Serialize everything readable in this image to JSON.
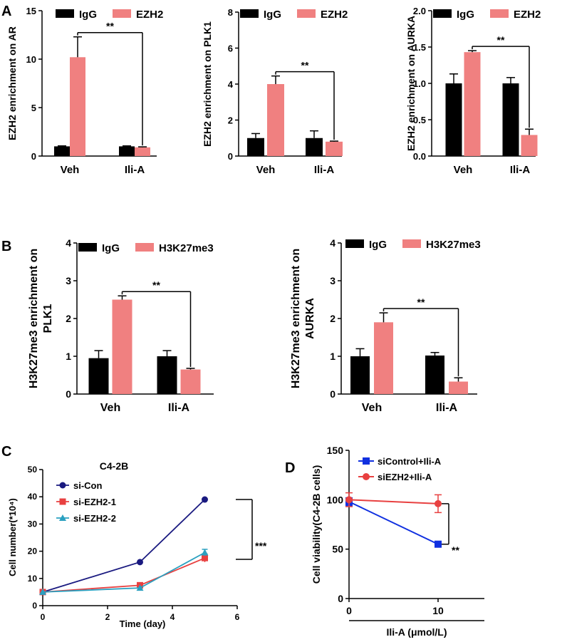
{
  "panels": {
    "A": "A",
    "B": "B",
    "C": "C",
    "D": "D"
  },
  "chart_data": [
    {
      "id": "A1",
      "type": "bar",
      "categories": [
        "Veh",
        "Ili-A"
      ],
      "series": [
        {
          "name": "IgG",
          "values": [
            1.0,
            1.0
          ],
          "errors": [
            0.05,
            0.05
          ]
        },
        {
          "name": "EZH2",
          "values": [
            10.2,
            0.9
          ],
          "errors": [
            2.1,
            0.05
          ]
        }
      ],
      "ylabel": "EZH2 enrichment on AR",
      "ylim": [
        0,
        15
      ],
      "yticks": [
        0,
        5,
        10,
        15
      ],
      "significance": "**",
      "colors": {
        "IgG": "#000000",
        "EZH2": "#f08080"
      }
    },
    {
      "id": "A2",
      "type": "bar",
      "categories": [
        "Veh",
        "Ili-A"
      ],
      "series": [
        {
          "name": "IgG",
          "values": [
            1.0,
            1.0
          ],
          "errors": [
            0.25,
            0.4
          ]
        },
        {
          "name": "EZH2",
          "values": [
            4.0,
            0.8
          ],
          "errors": [
            0.45,
            0.03
          ]
        }
      ],
      "ylabel": "EZH2 enrichment on PLK1",
      "ylim": [
        0,
        8
      ],
      "yticks": [
        0,
        2,
        4,
        6,
        8
      ],
      "significance": "**",
      "colors": {
        "IgG": "#000000",
        "EZH2": "#f08080"
      }
    },
    {
      "id": "A3",
      "type": "bar",
      "categories": [
        "Veh",
        "Ili-A"
      ],
      "series": [
        {
          "name": "IgG",
          "values": [
            1.0,
            1.0
          ],
          "errors": [
            0.13,
            0.08
          ]
        },
        {
          "name": "EZH2",
          "values": [
            1.43,
            0.29
          ],
          "errors": [
            0.02,
            0.08
          ]
        }
      ],
      "ylabel": "EZH2 enrichment on AURKA",
      "ylim": [
        0,
        2.0
      ],
      "yticks": [
        "0.0",
        "0.5",
        "1.0",
        "1.5",
        "2.0"
      ],
      "significance": "**",
      "colors": {
        "IgG": "#000000",
        "EZH2": "#f08080"
      }
    },
    {
      "id": "B1",
      "type": "bar",
      "categories": [
        "Veh",
        "Ili-A"
      ],
      "series": [
        {
          "name": "IgG",
          "values": [
            0.95,
            1.0
          ],
          "errors": [
            0.2,
            0.15
          ]
        },
        {
          "name": "H3K27me3",
          "values": [
            2.5,
            0.65
          ],
          "errors": [
            0.1,
            0.03
          ]
        }
      ],
      "ylabel_lines": [
        "H3K27me3 enrichment on",
        "PLK1"
      ],
      "ylim": [
        0,
        4
      ],
      "yticks": [
        0,
        1,
        2,
        3,
        4
      ],
      "significance": "**",
      "colors": {
        "IgG": "#000000",
        "H3K27me3": "#f08080"
      }
    },
    {
      "id": "B2",
      "type": "bar",
      "categories": [
        "Veh",
        "Ili-A"
      ],
      "series": [
        {
          "name": "IgG",
          "values": [
            1.0,
            1.02
          ],
          "errors": [
            0.2,
            0.08
          ]
        },
        {
          "name": "H3K27me3",
          "values": [
            1.9,
            0.33
          ],
          "errors": [
            0.25,
            0.1
          ]
        }
      ],
      "ylabel_lines": [
        "H3K27me3 enrichment on",
        "AURKA"
      ],
      "ylim": [
        0,
        4
      ],
      "yticks": [
        0,
        1,
        2,
        3,
        4
      ],
      "significance": "**",
      "colors": {
        "IgG": "#000000",
        "H3K27me3": "#f08080"
      }
    },
    {
      "id": "C",
      "type": "line",
      "title": "C4-2B",
      "xlabel": "Time (day)",
      "ylabel": "Cell number(*10⁴)",
      "xlim": [
        0,
        6
      ],
      "ylim": [
        0,
        50
      ],
      "xticks": [
        0,
        2,
        4,
        6
      ],
      "yticks": [
        0,
        10,
        20,
        30,
        40,
        50
      ],
      "x": [
        0,
        3,
        5
      ],
      "series": [
        {
          "name": "si-Con",
          "values": [
            5,
            16,
            39
          ],
          "color": "#1a1a80",
          "marker": "circle"
        },
        {
          "name": "si-EZH2-1",
          "values": [
            5,
            7.5,
            17.5
          ],
          "errors": [
            0,
            0,
            1.5
          ],
          "color": "#e84040",
          "marker": "square"
        },
        {
          "name": "si-EZH2-2",
          "values": [
            5,
            6.5,
            19.5
          ],
          "errors": [
            0,
            0,
            1.2
          ],
          "color": "#2aa0c0",
          "marker": "triangle"
        }
      ],
      "significance": "***"
    },
    {
      "id": "D",
      "type": "line",
      "xlabel": "Ili-A (μmol/L)",
      "ylabel": "Cell viability(C4-2B cells)",
      "xticks": [
        0,
        10
      ],
      "ylim": [
        0,
        150
      ],
      "yticks": [
        0,
        50,
        100,
        150
      ],
      "x": [
        0,
        10
      ],
      "series": [
        {
          "name": "siControl+Ili-A",
          "values": [
            98,
            55
          ],
          "errors": [
            4,
            2
          ],
          "color": "#1030e0",
          "marker": "square"
        },
        {
          "name": "siEZH2+Ili-A",
          "values": [
            100,
            96
          ],
          "errors": [
            7,
            9
          ],
          "color": "#e84040",
          "marker": "circle"
        }
      ],
      "significance": "**"
    }
  ]
}
